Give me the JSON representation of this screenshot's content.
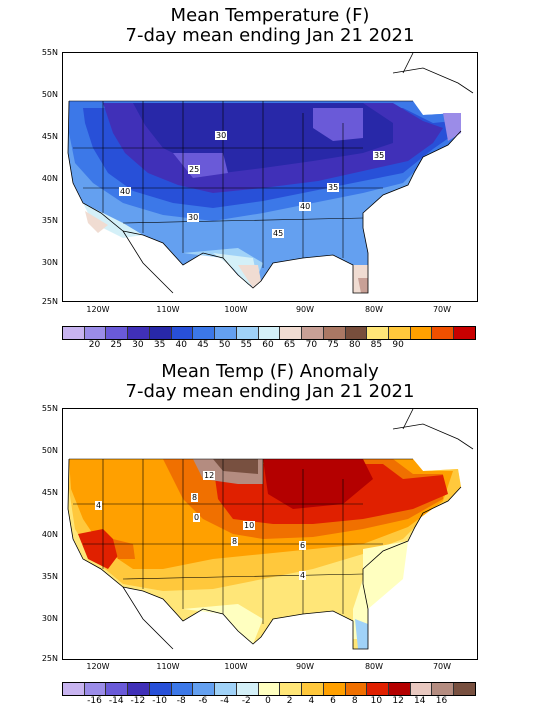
{
  "top_map": {
    "title_line1": "Mean Temperature (F)",
    "title_line2": "7-day mean ending Jan 21 2021",
    "lat_labels": [
      "55N",
      "50N",
      "45N",
      "40N",
      "35N",
      "30N",
      "25N"
    ],
    "lon_labels": [
      "120W",
      "110W",
      "100W",
      "90W",
      "80W",
      "70W"
    ],
    "colorbar_ticks": [
      "20",
      "25",
      "30",
      "35",
      "40",
      "45",
      "50",
      "55",
      "60",
      "65",
      "70",
      "75",
      "80",
      "85",
      "90"
    ],
    "colorbar_colors": [
      "#c8b4f0",
      "#9b8ce8",
      "#6a5ad8",
      "#4030b8",
      "#2828a8",
      "#2850d8",
      "#3c78e8",
      "#64a0f0",
      "#a0d2f8",
      "#d4f0f8",
      "#f0dcd2",
      "#c8a096",
      "#aa7864",
      "#784e3c",
      "#ffe678",
      "#ffc83c",
      "#ffa000",
      "#f05000",
      "#c80000"
    ],
    "contour_labels": [
      "30",
      "25",
      "40",
      "35",
      "30",
      "40",
      "35",
      "45"
    ]
  },
  "bottom_map": {
    "title_line1": "Mean Temp (F) Anomaly",
    "title_line2": "7-day mean ending Jan 21 2021",
    "lat_labels": [
      "55N",
      "50N",
      "45N",
      "40N",
      "35N",
      "30N",
      "25N"
    ],
    "lon_labels": [
      "120W",
      "110W",
      "100W",
      "90W",
      "80W",
      "70W"
    ],
    "colorbar_ticks": [
      "-16",
      "-14",
      "-12",
      "-10",
      "-8",
      "-6",
      "-4",
      "-2",
      "0",
      "2",
      "4",
      "6",
      "8",
      "10",
      "12",
      "14",
      "16"
    ],
    "colorbar_colors": [
      "#c8b4f0",
      "#9b8ce8",
      "#6a5ad8",
      "#4030b8",
      "#2850d8",
      "#3c78e8",
      "#64a0f0",
      "#a0d2f8",
      "#d4f0f8",
      "#ffffc0",
      "#ffe678",
      "#ffc83c",
      "#ffa000",
      "#f07000",
      "#e02000",
      "#b40000",
      "#e8c8c0",
      "#b48c80",
      "#785040"
    ],
    "contour_labels": [
      "12",
      "8",
      "4",
      "0",
      "10",
      "8",
      "6",
      "4"
    ]
  }
}
